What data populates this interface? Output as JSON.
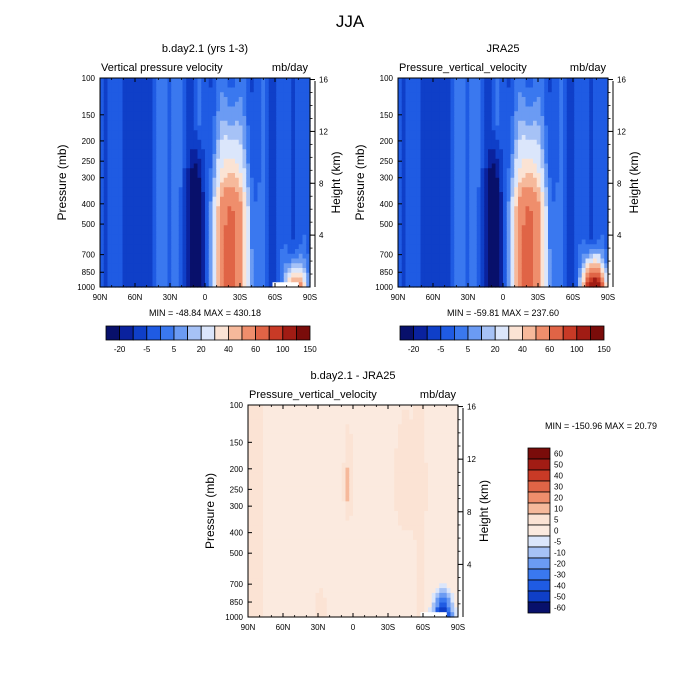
{
  "figure": {
    "title": "JJA"
  },
  "chart_data": [
    {
      "type": "heatmap",
      "title": "b.day2.1 (yrs 1-3)",
      "variable_label": "Vertical pressure velocity",
      "units_label": "mb/day",
      "ylabel": "Pressure (mb)",
      "ylabel_right": "Height (km)",
      "x_ticks": [
        "90N",
        "60N",
        "30N",
        "0",
        "30S",
        "60S",
        "90S"
      ],
      "y_ticks": [
        "100",
        "150",
        "200",
        "250",
        "300",
        "400",
        "500",
        "700",
        "850",
        "1000"
      ],
      "y_ticks_right": [
        "16",
        "12",
        "8",
        "4"
      ],
      "y_scale": "log",
      "minmax_text": "MIN = -48.84  MAX = 430.18",
      "colorbar_labels": [
        "-20",
        "-5",
        "5",
        "20",
        "40",
        "60",
        "100",
        "150"
      ],
      "colorbar_orientation": "horizontal"
    },
    {
      "type": "heatmap",
      "title": "JRA25",
      "variable_label": "Pressure_vertical_velocity",
      "units_label": "mb/day",
      "ylabel": "Pressure (mb)",
      "ylabel_right": "Height (km)",
      "x_ticks": [
        "90N",
        "60N",
        "30N",
        "0",
        "30S",
        "60S",
        "90S"
      ],
      "y_ticks": [
        "100",
        "150",
        "200",
        "250",
        "300",
        "400",
        "500",
        "700",
        "850",
        "1000"
      ],
      "y_ticks_right": [
        "16",
        "12",
        "8",
        "4"
      ],
      "y_scale": "log",
      "minmax_text": "MIN = -59.81  MAX = 237.60",
      "colorbar_labels": [
        "-20",
        "-5",
        "5",
        "20",
        "40",
        "60",
        "100",
        "150"
      ],
      "colorbar_orientation": "horizontal"
    },
    {
      "type": "heatmap",
      "title": "b.day2.1 - JRA25",
      "variable_label": "Pressure_vertical_velocity",
      "units_label": "mb/day",
      "ylabel": "Pressure (mb)",
      "ylabel_right": "Height (km)",
      "x_ticks": [
        "90N",
        "60N",
        "30N",
        "0",
        "30S",
        "60S",
        "90S"
      ],
      "y_ticks": [
        "100",
        "150",
        "200",
        "250",
        "300",
        "400",
        "500",
        "700",
        "850",
        "1000"
      ],
      "y_ticks_right": [
        "16",
        "12",
        "8",
        "4"
      ],
      "y_scale": "log",
      "minmax_text": "MIN = -150.96  MAX =  20.79",
      "colorbar_labels": [
        "60",
        "50",
        "40",
        "30",
        "20",
        "10",
        "5",
        "0",
        "-5",
        "-10",
        "-20",
        "-30",
        "-40",
        "-50",
        "-60"
      ],
      "colorbar_orientation": "vertical"
    }
  ],
  "colors": {
    "abs_scale": [
      "#08106b",
      "#0a229e",
      "#0f3fc8",
      "#1f5be3",
      "#3a78ef",
      "#6b9bf3",
      "#a6c2f6",
      "#dbe6fb",
      "#fbe3d4",
      "#f6b99b",
      "#ef8e6c",
      "#e06446",
      "#c83a26",
      "#a11c14",
      "#7a0c0a"
    ],
    "diff_scale": [
      "#7a0c0a",
      "#a11c14",
      "#c83a26",
      "#e06446",
      "#ef8e6c",
      "#f6b99b",
      "#fbe3d4",
      "#fbeadf",
      "#dbe6fb",
      "#a6c2f6",
      "#6b9bf3",
      "#3a78ef",
      "#1f5be3",
      "#0f3fc8",
      "#08106b"
    ]
  }
}
